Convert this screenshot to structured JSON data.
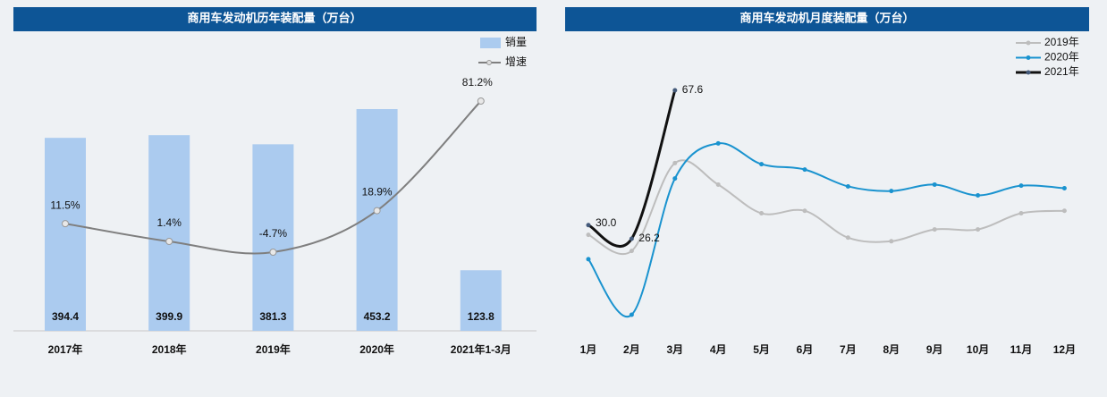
{
  "chart_data": [
    {
      "type": "bar",
      "title": "商用车发动机历年装配量（万台）",
      "categories": [
        "2017年",
        "2018年",
        "2019年",
        "2020年",
        "2021年1-3月"
      ],
      "series": [
        {
          "name": "销量",
          "color": "#abcbef",
          "values": [
            394.4,
            399.9,
            381.3,
            453.2,
            123.8
          ]
        },
        {
          "name": "增速",
          "color": "#7f7f7f",
          "axis": "y2",
          "type": "line",
          "values": [
            11.5,
            1.4,
            -4.7,
            18.9,
            81.2
          ],
          "value_labels": [
            "11.5%",
            "1.4%",
            "-4.7%",
            "18.9%",
            "81.2%"
          ]
        }
      ],
      "legend": "top-right"
    },
    {
      "type": "line",
      "title": "商用车发动机月度装配量（万台）",
      "categories": [
        "1月",
        "2月",
        "3月",
        "4月",
        "5月",
        "6月",
        "7月",
        "8月",
        "9月",
        "10月",
        "11月",
        "12月"
      ],
      "series": [
        {
          "name": "2019年",
          "color": "#bdbdbd",
          "values": [
            27.3,
            22.8,
            47.3,
            41.3,
            33.3,
            34,
            26.5,
            25.5,
            28.8,
            28.8,
            33.3,
            34
          ]
        },
        {
          "name": "2020年",
          "color": "#1a93cf",
          "values": [
            20.5,
            5,
            43,
            52.8,
            47,
            45.5,
            40.8,
            39.5,
            41.3,
            38.3,
            41,
            40.3
          ]
        },
        {
          "name": "2021年",
          "color": "#111111",
          "values": [
            30.0,
            26.2,
            67.6,
            null,
            null,
            null,
            null,
            null,
            null,
            null,
            null,
            null
          ],
          "value_labels": [
            "30.0",
            "26.2",
            "67.6"
          ]
        }
      ],
      "legend": "top-right"
    }
  ]
}
